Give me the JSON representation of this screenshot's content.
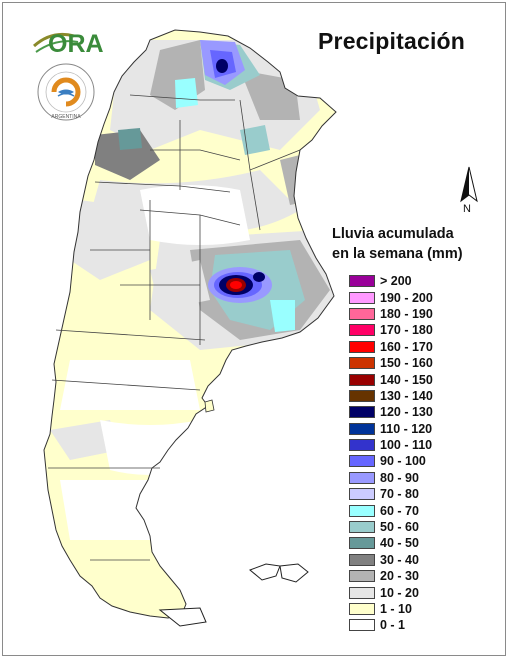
{
  "title": "Precipitación",
  "logo_text": "ORA",
  "seal_text": "ARGENTINA",
  "north_label": "N",
  "legend": {
    "title_line1": "Lluvia acumulada",
    "title_line2": "en la semana (mm)",
    "items": [
      {
        "label": "> 200",
        "color": "#990099"
      },
      {
        "label": "190 - 200",
        "color": "#ff99ff"
      },
      {
        "label": "180 - 190",
        "color": "#ff6699"
      },
      {
        "label": "170 - 180",
        "color": "#ff0066"
      },
      {
        "label": "160 - 170",
        "color": "#ff0000"
      },
      {
        "label": "150 - 160",
        "color": "#cc3300"
      },
      {
        "label": "140 - 150",
        "color": "#990000"
      },
      {
        "label": "130 - 140",
        "color": "#663300"
      },
      {
        "label": "120 - 130",
        "color": "#000066"
      },
      {
        "label": "110 - 120",
        "color": "#003399"
      },
      {
        "label": "100 - 110",
        "color": "#3333cc"
      },
      {
        "label": "90 - 100",
        "color": "#6666ff"
      },
      {
        "label": "80 - 90",
        "color": "#9999ff"
      },
      {
        "label": "70 - 80",
        "color": "#ccccff"
      },
      {
        "label": "60 - 70",
        "color": "#99ffff"
      },
      {
        "label": "50 - 60",
        "color": "#99cccc"
      },
      {
        "label": "40 - 50",
        "color": "#669999"
      },
      {
        "label": "30 - 40",
        "color": "#808080"
      },
      {
        "label": "20 - 30",
        "color": "#b3b3b3"
      },
      {
        "label": "10 - 20",
        "color": "#e6e6e6"
      },
      {
        "label": "1 - 10",
        "color": "#ffffcc"
      },
      {
        "label": "0 - 1",
        "color": "#ffffff"
      }
    ]
  }
}
